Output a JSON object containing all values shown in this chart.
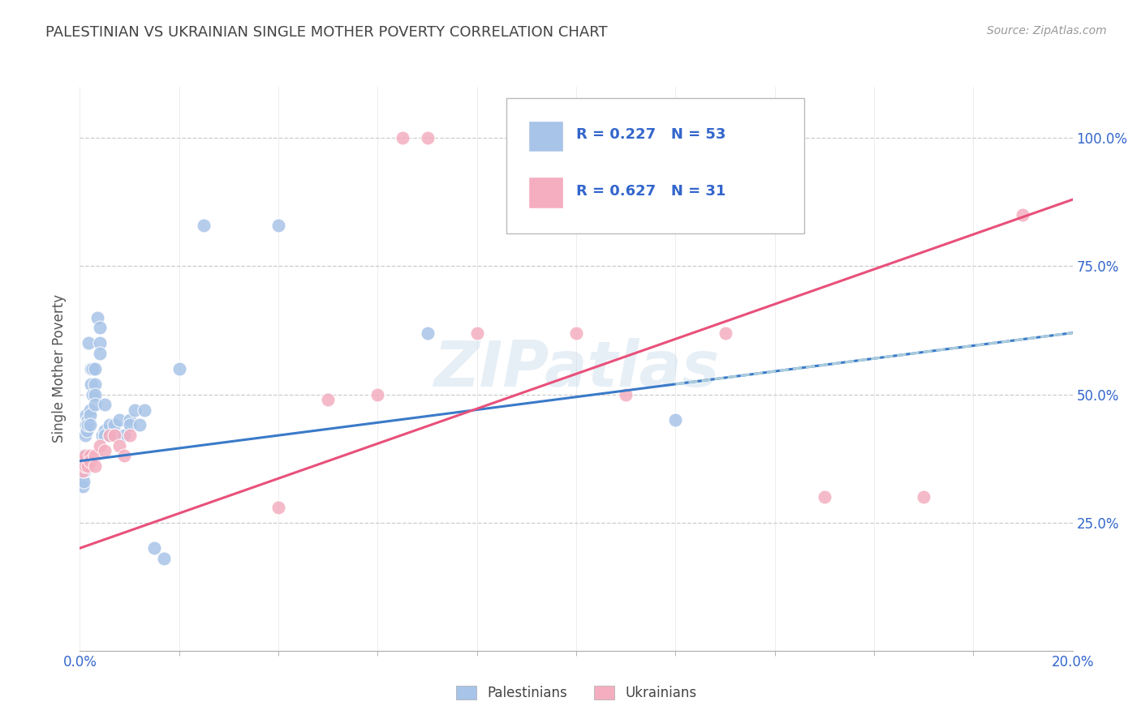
{
  "title": "PALESTINIAN VS UKRAINIAN SINGLE MOTHER POVERTY CORRELATION CHART",
  "source": "Source: ZipAtlas.com",
  "ylabel": "Single Mother Poverty",
  "watermark": "ZIPatlas",
  "legend_palestinians": "Palestinians",
  "legend_ukrainians": "Ukrainians",
  "r_palestinians": 0.227,
  "n_palestinians": 53,
  "r_ukrainians": 0.627,
  "n_ukrainians": 31,
  "color_palestinians": "#a8c4e8",
  "color_ukrainians": "#f4aec0",
  "color_trend_palestinians": "#3a7ac8",
  "color_trend_ukrainians": "#e8507a",
  "color_trend_ext": "#aaccdd",
  "background": "#ffffff",
  "grid_color": "#cccccc",
  "title_color": "#444444",
  "legend_r_color": "#3366cc",
  "axis_tick_color": "#3366cc",
  "ylabel_color": "#555555",
  "xmin": 0.0,
  "xmax": 0.2,
  "ymin": 0.0,
  "ymax": 1.1,
  "ytick_vals": [
    0.25,
    0.5,
    0.75,
    1.0
  ],
  "ytick_labels": [
    "25.0%",
    "50.0%",
    "75.0%",
    "100.0%"
  ],
  "palestinians_x": [
    0.0002,
    0.0003,
    0.0004,
    0.0005,
    0.0006,
    0.0007,
    0.0008,
    0.0009,
    0.001,
    0.001,
    0.0012,
    0.0013,
    0.0014,
    0.0015,
    0.0016,
    0.0017,
    0.002,
    0.002,
    0.002,
    0.0022,
    0.0023,
    0.0025,
    0.0026,
    0.003,
    0.003,
    0.003,
    0.003,
    0.0035,
    0.004,
    0.004,
    0.004,
    0.0045,
    0.005,
    0.005,
    0.005,
    0.006,
    0.006,
    0.007,
    0.007,
    0.008,
    0.009,
    0.01,
    0.01,
    0.011,
    0.012,
    0.013,
    0.015,
    0.017,
    0.02,
    0.025,
    0.04,
    0.07,
    0.12
  ],
  "palestinians_y": [
    0.37,
    0.36,
    0.34,
    0.35,
    0.32,
    0.38,
    0.33,
    0.35,
    0.42,
    0.44,
    0.46,
    0.44,
    0.43,
    0.45,
    0.44,
    0.6,
    0.47,
    0.46,
    0.44,
    0.55,
    0.52,
    0.5,
    0.55,
    0.52,
    0.55,
    0.5,
    0.48,
    0.65,
    0.63,
    0.6,
    0.58,
    0.42,
    0.43,
    0.42,
    0.48,
    0.42,
    0.44,
    0.44,
    0.42,
    0.45,
    0.42,
    0.45,
    0.44,
    0.47,
    0.44,
    0.47,
    0.2,
    0.18,
    0.55,
    0.83,
    0.83,
    0.62,
    0.45
  ],
  "ukrainians_x": [
    0.0002,
    0.0004,
    0.0006,
    0.0008,
    0.001,
    0.001,
    0.0015,
    0.002,
    0.002,
    0.003,
    0.003,
    0.004,
    0.005,
    0.006,
    0.007,
    0.008,
    0.009,
    0.01,
    0.04,
    0.05,
    0.06,
    0.065,
    0.07,
    0.08,
    0.09,
    0.1,
    0.11,
    0.13,
    0.15,
    0.17,
    0.19
  ],
  "ukrainians_y": [
    0.37,
    0.36,
    0.35,
    0.37,
    0.38,
    0.36,
    0.36,
    0.38,
    0.37,
    0.38,
    0.36,
    0.4,
    0.39,
    0.42,
    0.42,
    0.4,
    0.38,
    0.42,
    0.28,
    0.49,
    0.5,
    1.0,
    1.0,
    0.62,
    1.0,
    0.62,
    0.5,
    0.62,
    0.3,
    0.3,
    0.85
  ],
  "trend_pal_x0": 0.0,
  "trend_pal_y0": 0.37,
  "trend_pal_x1": 0.2,
  "trend_pal_y1": 0.62,
  "trend_ukr_x0": 0.0,
  "trend_ukr_y0": 0.2,
  "trend_ukr_x1": 0.2,
  "trend_ukr_y1": 0.88,
  "trend_ext_x0": 0.12,
  "trend_ext_x1": 0.2
}
